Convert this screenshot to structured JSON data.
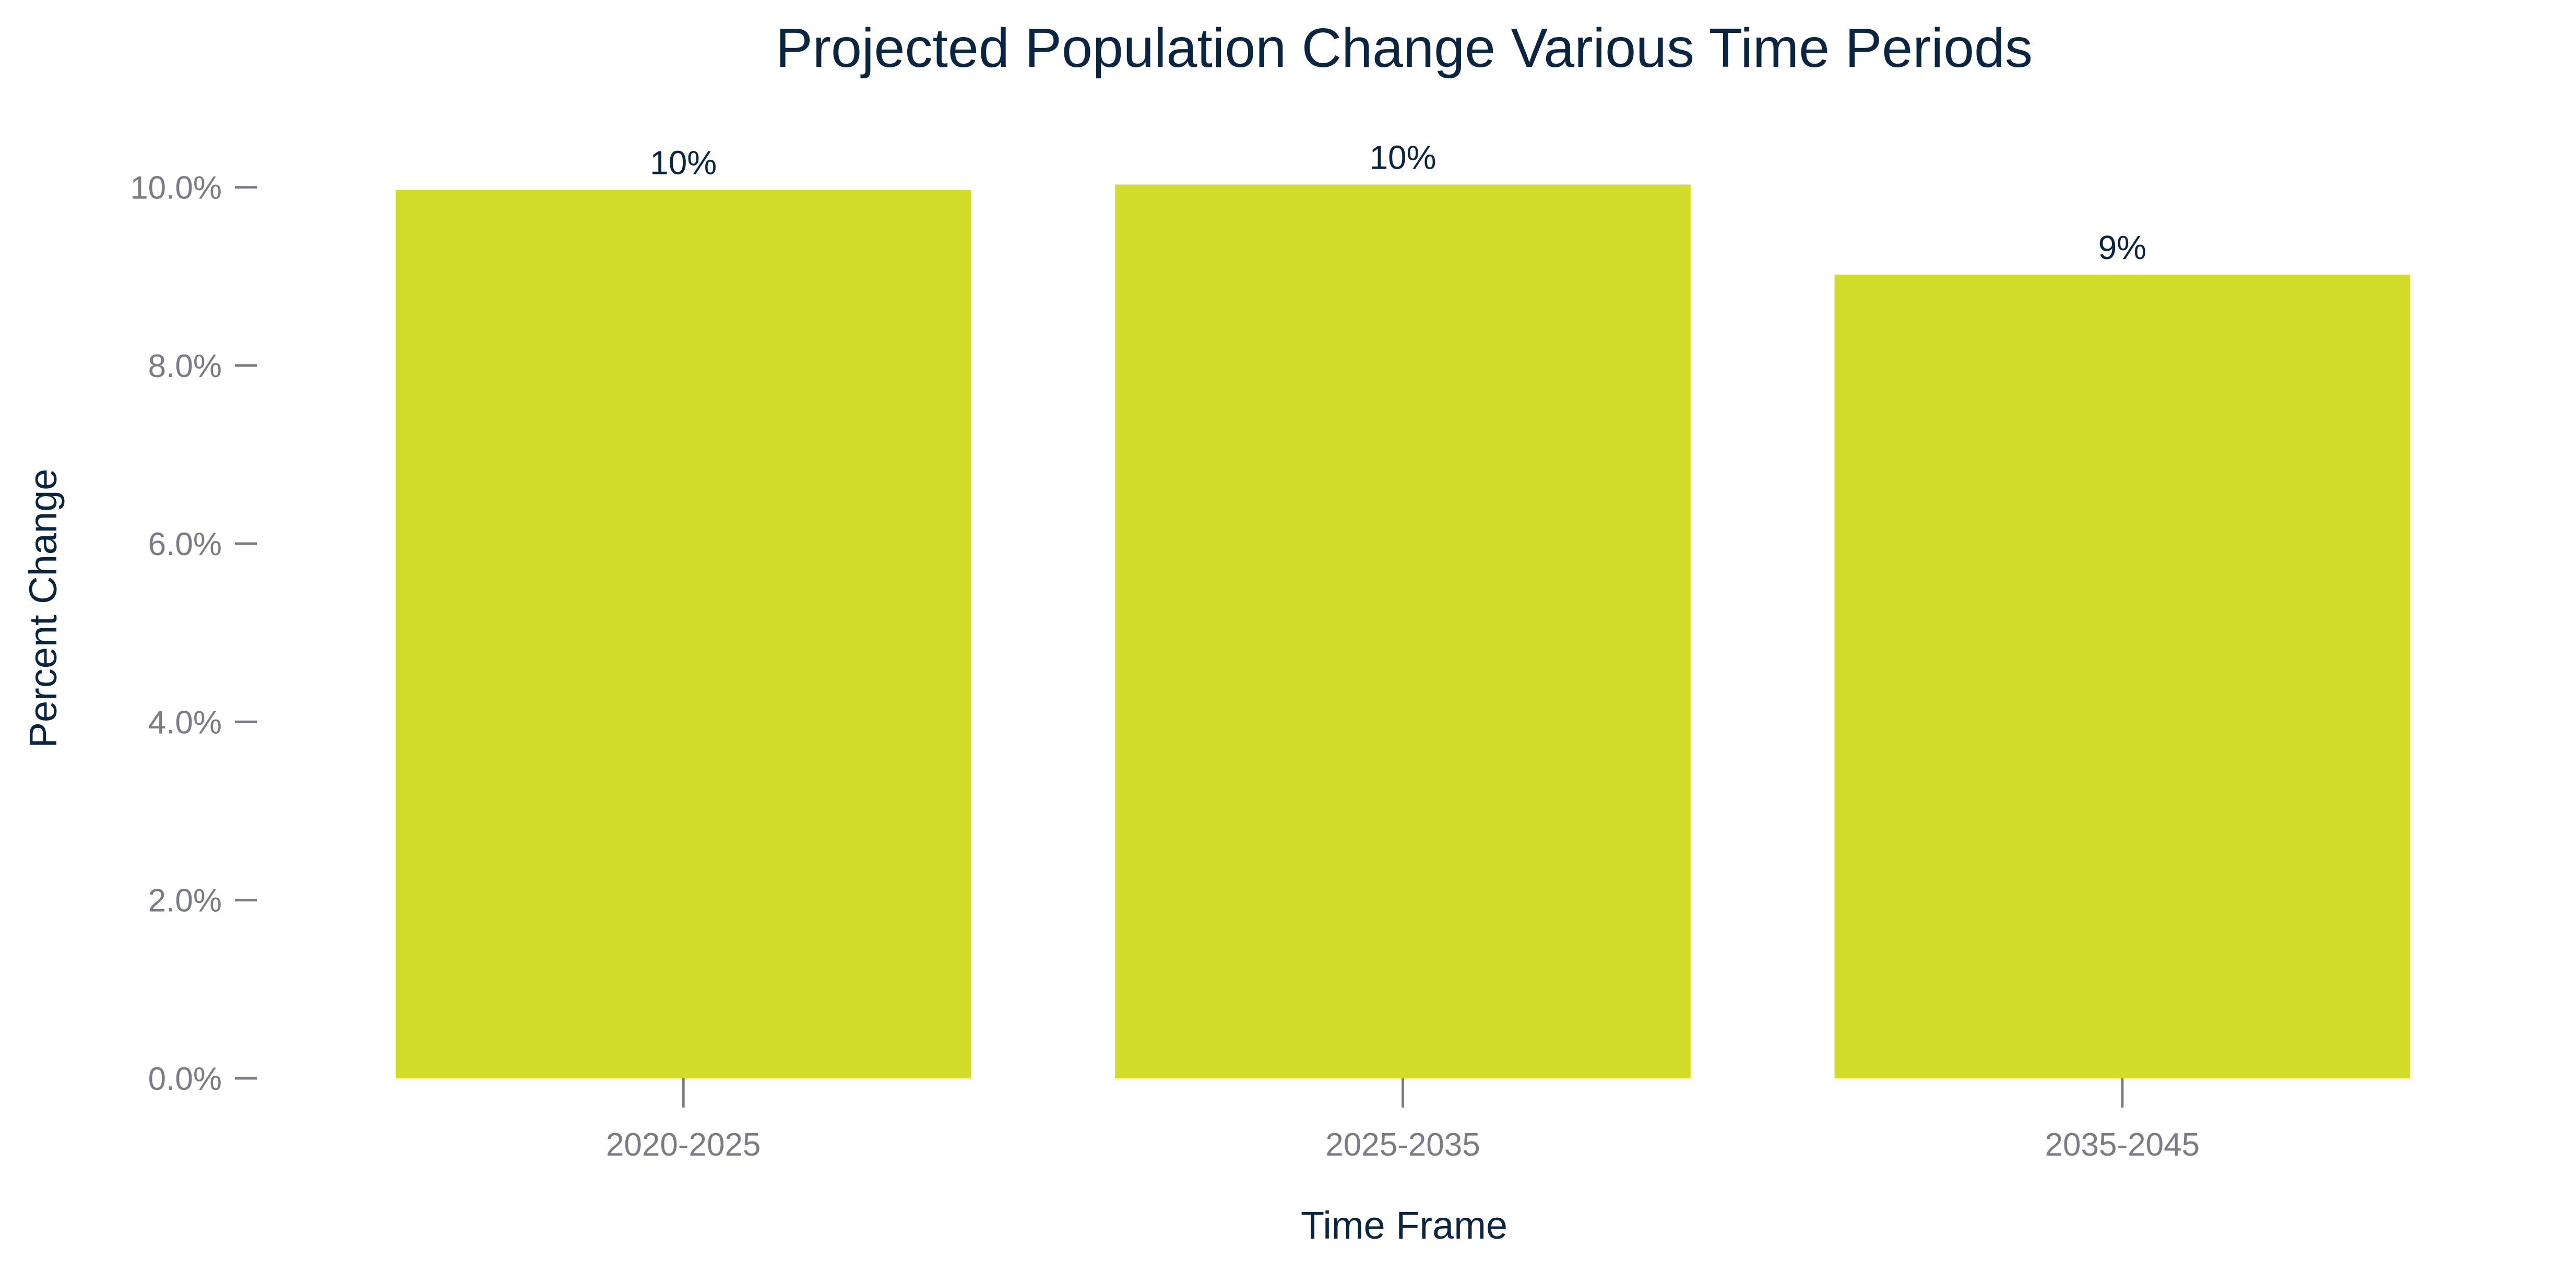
{
  "chart_data": {
    "type": "bar",
    "title": "Projected Population Change Various Time Periods",
    "xlabel": "Time Frame",
    "ylabel": "Percent Change",
    "categories": [
      "2020-2025",
      "2025-2035",
      "2035-2045"
    ],
    "values": [
      9.97,
      10.03,
      9.02
    ],
    "data_labels": [
      "10%",
      "10%",
      "9%"
    ],
    "yticks": [
      0,
      2,
      4,
      6,
      8,
      10
    ],
    "ytick_labels": [
      "0.0%",
      "2.0%",
      "4.0%",
      "6.0%",
      "8.0%",
      "10.0%"
    ],
    "ylim": [
      0,
      10.9
    ],
    "bar_color": "#d1dd2a",
    "grid": false,
    "legend": "none"
  }
}
